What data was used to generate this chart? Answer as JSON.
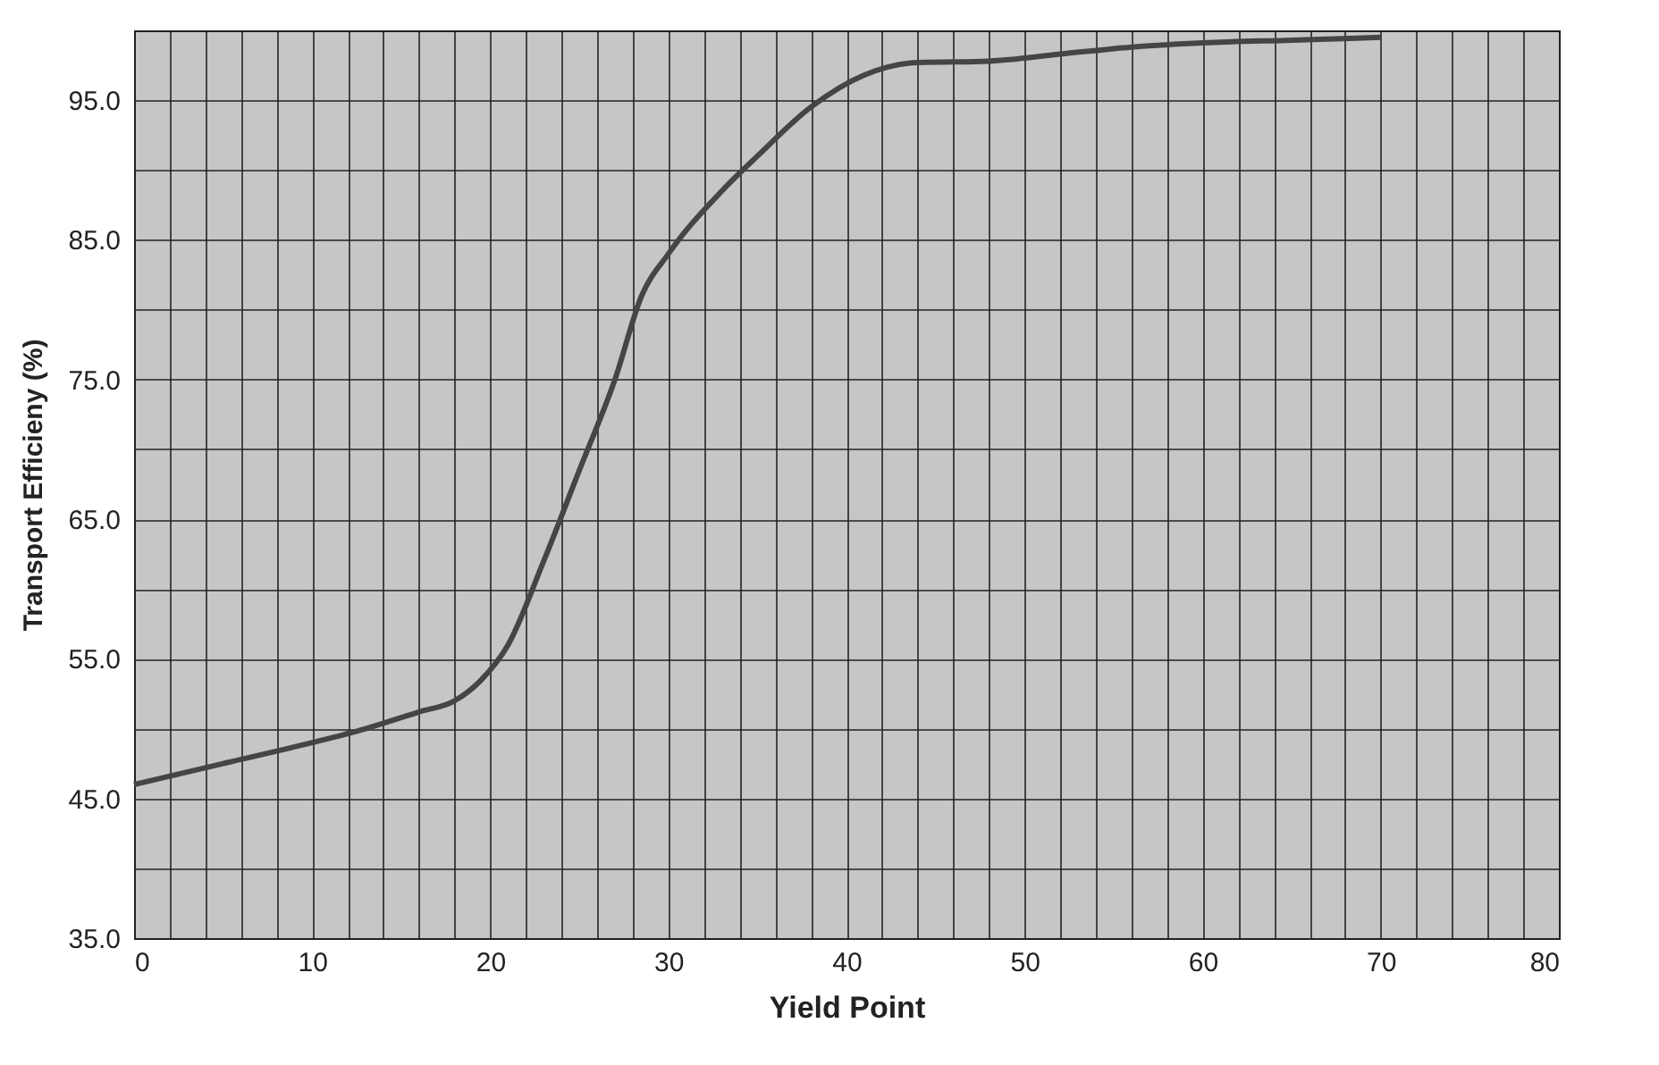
{
  "chart_data": {
    "type": "line",
    "xlabel": "Yield Point",
    "ylabel": "Transport Efficieny (%)",
    "x": [
      0,
      5,
      10,
      13,
      16,
      18,
      19.5,
      21,
      23,
      25,
      27,
      28.5,
      30,
      33,
      35,
      38,
      41,
      44,
      48,
      52,
      56,
      60,
      65,
      70
    ],
    "series": [
      {
        "color": "#454545",
        "values": [
          46,
          47.5,
          49,
          50,
          51.2,
          52,
          53.5,
          56,
          62,
          68.5,
          75,
          81,
          84,
          88.5,
          91,
          94.5,
          96.8,
          97.7,
          97.8,
          98.3,
          98.8,
          99.1,
          99.3,
          99.5
        ]
      }
    ],
    "xlim": [
      0,
      80
    ],
    "xticks": [
      0,
      {
        "value": 2,
        "label": null
      },
      {
        "value": 4,
        "label": null
      },
      {
        "value": 6,
        "label": null
      },
      {
        "value": 8,
        "label": null
      },
      10,
      {
        "value": 12,
        "label": null
      },
      {
        "value": 14,
        "label": null
      },
      {
        "value": 16,
        "label": null
      },
      {
        "value": 18,
        "label": null
      },
      20,
      {
        "value": 22,
        "label": null
      },
      {
        "value": 24,
        "label": null
      },
      {
        "value": 26,
        "label": null
      },
      {
        "value": 28,
        "label": null
      },
      30,
      {
        "value": 32,
        "label": null
      },
      {
        "value": 34,
        "label": null
      },
      {
        "value": 36,
        "label": null
      },
      {
        "value": 38,
        "label": null
      },
      40,
      {
        "value": 42,
        "label": null
      },
      {
        "value": 44,
        "label": null
      },
      {
        "value": 46,
        "label": null
      },
      {
        "value": 48,
        "label": null
      },
      50,
      {
        "value": 52,
        "label": null
      },
      {
        "value": 54,
        "label": null
      },
      {
        "value": 56,
        "label": null
      },
      {
        "value": 58,
        "label": null
      },
      60,
      {
        "value": 62,
        "label": null
      },
      {
        "value": 64,
        "label": null
      },
      {
        "value": 66,
        "label": null
      },
      {
        "value": 68,
        "label": null
      },
      70,
      {
        "value": 72,
        "label": null
      },
      {
        "value": 74,
        "label": null
      },
      {
        "value": 76,
        "label": null
      },
      {
        "value": 78,
        "label": null
      },
      80
    ],
    "ylim": [
      35,
      100
    ],
    "yticks": [
      {
        "value": 35,
        "label": "35.0"
      },
      {
        "value": 40,
        "label": null
      },
      {
        "value": 45,
        "label": "45.0"
      },
      {
        "value": 50,
        "label": null
      },
      {
        "value": 55,
        "label": "55.0"
      },
      {
        "value": 60,
        "label": null
      },
      {
        "value": 65,
        "label": "65.0"
      },
      {
        "value": 70,
        "label": null
      },
      {
        "value": 75,
        "label": "75.0"
      },
      {
        "value": 80,
        "label": null
      },
      {
        "value": 85,
        "label": "85.0"
      },
      {
        "value": 90,
        "label": null
      },
      {
        "value": 95,
        "label": "95.0"
      },
      {
        "value": 100,
        "label": null
      }
    ],
    "grid": true,
    "marker": "none",
    "line_style": "solid",
    "legend": false
  }
}
